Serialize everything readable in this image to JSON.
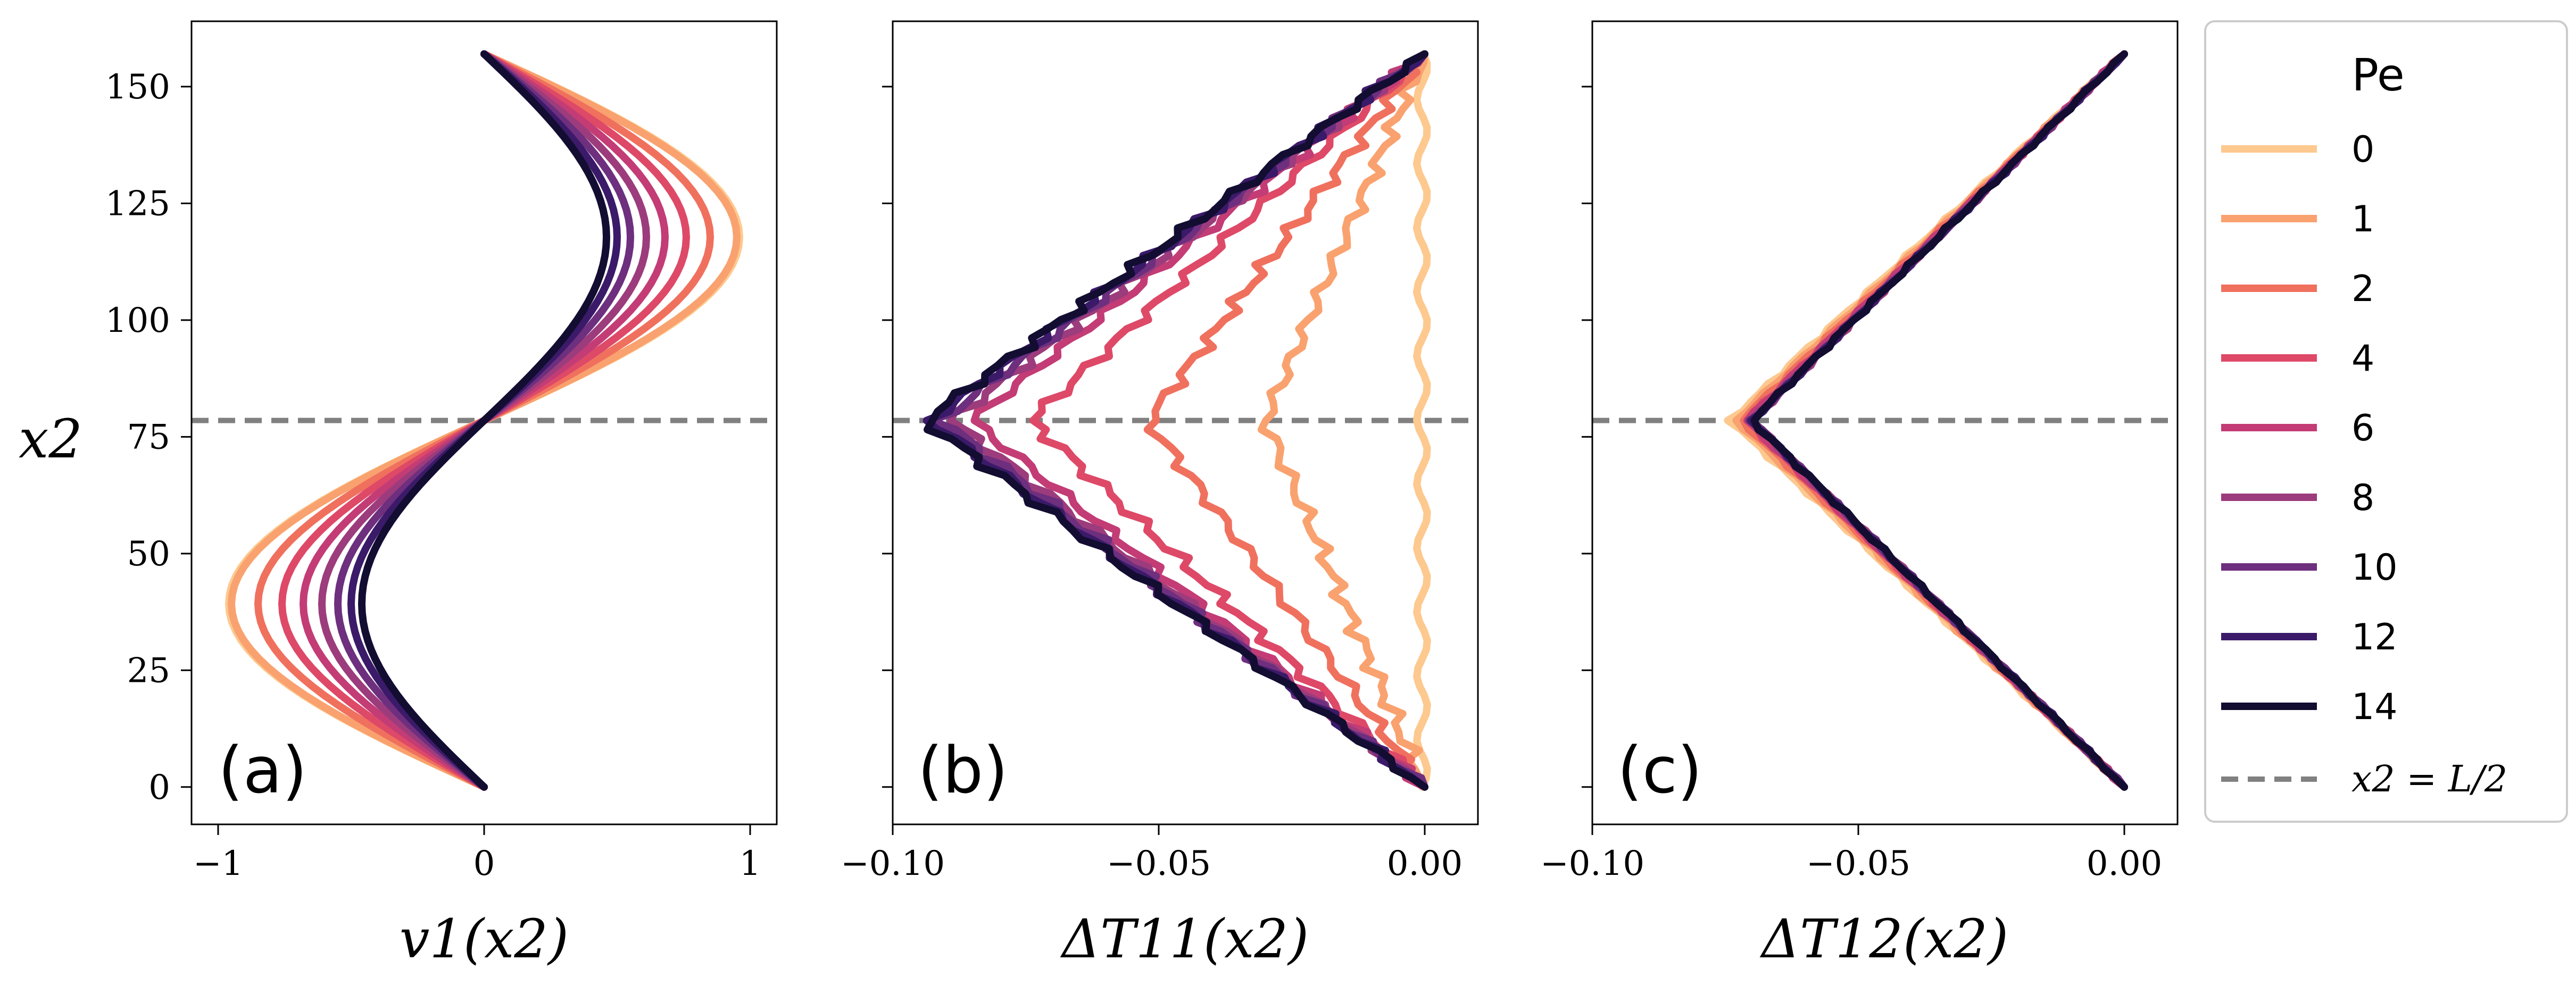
{
  "chart_data": [
    {
      "type": "line",
      "panel_label": "(a)",
      "xlabel": "v1(x2)",
      "ylabel": "x2",
      "xlim": [
        -1.1,
        1.1
      ],
      "ylim": [
        -8,
        164
      ],
      "xticks": [
        -1,
        0,
        1
      ],
      "xtick_labels": [
        "−1",
        "0",
        "1"
      ],
      "yticks": [
        0,
        25,
        50,
        75,
        100,
        125,
        150
      ],
      "ytick_labels": [
        "0",
        "25",
        "50",
        "75",
        "100",
        "125",
        "150"
      ],
      "description": "v1(x2) = -A*sin(2*pi*x2/157); amplitude A per Pe",
      "x2_range": [
        0,
        157
      ],
      "series": [
        {
          "name": "0",
          "amplitude": 0.96
        },
        {
          "name": "1",
          "amplitude": 0.95
        },
        {
          "name": "2",
          "amplitude": 0.85
        },
        {
          "name": "4",
          "amplitude": 0.76
        },
        {
          "name": "6",
          "amplitude": 0.68
        },
        {
          "name": "8",
          "amplitude": 0.61
        },
        {
          "name": "10",
          "amplitude": 0.55
        },
        {
          "name": "12",
          "amplitude": 0.5
        },
        {
          "name": "14",
          "amplitude": 0.46
        }
      ]
    },
    {
      "type": "line",
      "panel_label": "(b)",
      "xlabel": "ΔT11(x2)",
      "ylabel": "",
      "xlim": [
        -0.1,
        0.01
      ],
      "ylim": [
        -8,
        164
      ],
      "xticks": [
        -0.1,
        -0.05,
        0.0
      ],
      "xtick_labels": [
        "−0.10",
        "−0.05",
        "0.00"
      ],
      "description": "V-shaped profile: value 0 at x2=0 and x2=157, minimum at x2=78.5",
      "x2_range": [
        0,
        157
      ],
      "series": [
        {
          "name": "0",
          "minimum": 0.001
        },
        {
          "name": "1",
          "minimum": -0.03
        },
        {
          "name": "2",
          "minimum": -0.052
        },
        {
          "name": "4",
          "minimum": -0.074
        },
        {
          "name": "6",
          "minimum": -0.085
        },
        {
          "name": "8",
          "minimum": -0.089
        },
        {
          "name": "10",
          "minimum": -0.091
        },
        {
          "name": "12",
          "minimum": -0.093
        },
        {
          "name": "14",
          "minimum": -0.094
        }
      ]
    },
    {
      "type": "line",
      "panel_label": "(c)",
      "xlabel": "ΔT12(x2)",
      "ylabel": "",
      "xlim": [
        -0.1,
        0.01
      ],
      "ylim": [
        -8,
        164
      ],
      "xticks": [
        -0.1,
        -0.05,
        0.0
      ],
      "xtick_labels": [
        "−0.10",
        "−0.05",
        "0.00"
      ],
      "description": "V-shaped profile: value 0 at x2=0 and x2=157, minimum at x2=78.5",
      "x2_range": [
        0,
        157
      ],
      "series": [
        {
          "name": "0",
          "minimum": -0.074
        },
        {
          "name": "1",
          "minimum": -0.073
        },
        {
          "name": "2",
          "minimum": -0.072
        },
        {
          "name": "4",
          "minimum": -0.071
        },
        {
          "name": "6",
          "minimum": -0.071
        },
        {
          "name": "8",
          "minimum": -0.07
        },
        {
          "name": "10",
          "minimum": -0.07
        },
        {
          "name": "12",
          "minimum": -0.07
        },
        {
          "name": "14",
          "minimum": -0.07
        }
      ]
    }
  ],
  "reference_line": {
    "x2": 78.5,
    "label": "x2 = L/2",
    "color": "#808080"
  },
  "legend": {
    "title": "Pe",
    "placement": "right",
    "entries": [
      {
        "label": "0",
        "color": "#fdc98f"
      },
      {
        "label": "1",
        "color": "#f9a26f"
      },
      {
        "label": "2",
        "color": "#f0705e"
      },
      {
        "label": "4",
        "color": "#de4968"
      },
      {
        "label": "6",
        "color": "#c33c75"
      },
      {
        "label": "8",
        "color": "#9c3c7c"
      },
      {
        "label": "10",
        "color": "#6d2f7e"
      },
      {
        "label": "12",
        "color": "#3b1a69"
      },
      {
        "label": "14",
        "color": "#120d31"
      }
    ],
    "reference_entry": "x2 = L/2"
  }
}
